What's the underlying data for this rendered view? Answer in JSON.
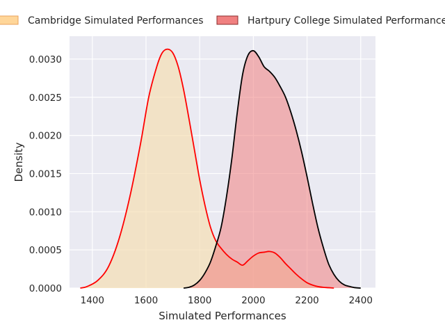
{
  "chart_data": {
    "type": "area",
    "title": "",
    "xlabel": "Simulated Performances",
    "ylabel": "Density",
    "xlim": [
      1315,
      2455
    ],
    "ylim": [
      0,
      0.0033
    ],
    "grid": true,
    "legend_position": "top",
    "xticks": [
      1400,
      1600,
      1800,
      2000,
      2200,
      2400
    ],
    "xtick_labels": [
      "1400",
      "1600",
      "1800",
      "2000",
      "2200",
      "2400"
    ],
    "yticks": [
      0,
      0.0005,
      0.001,
      0.0015,
      0.002,
      0.0025,
      0.003
    ],
    "ytick_labels": [
      "0.0000",
      "0.0005",
      "0.0010",
      "0.0015",
      "0.0020",
      "0.0025",
      "0.0030"
    ],
    "series": [
      {
        "name": "Cambridge Simulated Performances",
        "fill_color": "#f5deb3",
        "line_color": "#ff0000",
        "legend_fill": "#ffd699",
        "legend_edge": "#e8a25a",
        "x": [
          1355,
          1380,
          1420,
          1460,
          1500,
          1540,
          1580,
          1610,
          1640,
          1660,
          1680,
          1700,
          1720,
          1740,
          1760,
          1780,
          1800,
          1820,
          1840,
          1860,
          1880,
          1900,
          1920,
          1940,
          1960,
          1980,
          2000,
          2020,
          2040,
          2060,
          2080,
          2100,
          2120,
          2140,
          2160,
          2180,
          2200,
          2220,
          2240,
          2260,
          2280,
          2300
        ],
        "y": [
          0.0,
          2e-05,
          0.0001,
          0.00028,
          0.00065,
          0.0012,
          0.0019,
          0.0025,
          0.0029,
          0.00308,
          0.00313,
          0.00308,
          0.0029,
          0.0026,
          0.00222,
          0.00182,
          0.00142,
          0.00108,
          0.0008,
          0.00062,
          0.00052,
          0.00044,
          0.00038,
          0.00034,
          0.0003,
          0.00036,
          0.00042,
          0.00046,
          0.00047,
          0.00048,
          0.00046,
          0.0004,
          0.00032,
          0.00025,
          0.00018,
          0.00012,
          7e-05,
          4e-05,
          2e-05,
          1e-05,
          5e-06,
          0.0
        ]
      },
      {
        "name": "Hartpury College Simulated Performances",
        "fill_color": "#f08080",
        "line_color": "#000000",
        "legend_fill": "#f08080",
        "legend_edge": "#8b2d2d",
        "x": [
          1740,
          1760,
          1780,
          1800,
          1820,
          1840,
          1860,
          1880,
          1900,
          1920,
          1940,
          1960,
          1980,
          2000,
          2020,
          2040,
          2060,
          2080,
          2100,
          2120,
          2140,
          2160,
          2180,
          2200,
          2220,
          2240,
          2260,
          2280,
          2300,
          2320,
          2340,
          2360,
          2380,
          2400
        ],
        "y": [
          0.0,
          1e-05,
          4e-05,
          0.0001,
          0.0002,
          0.00034,
          0.00055,
          0.0008,
          0.0012,
          0.0017,
          0.0023,
          0.0028,
          0.00305,
          0.00311,
          0.00303,
          0.0029,
          0.00284,
          0.00276,
          0.00264,
          0.0025,
          0.0023,
          0.00206,
          0.00178,
          0.00146,
          0.00112,
          0.0008,
          0.00054,
          0.00032,
          0.00018,
          9e-05,
          4e-05,
          2e-05,
          5e-06,
          0.0
        ]
      }
    ]
  }
}
